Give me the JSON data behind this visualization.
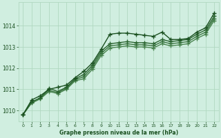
{
  "bg_color": "#d0eee0",
  "grid_color": "#b0d8c0",
  "line_color_dark": "#1a5020",
  "xlabel": "Graphe pression niveau de la mer (hPa)",
  "x_ticks": [
    0,
    1,
    2,
    3,
    4,
    5,
    6,
    7,
    8,
    9,
    10,
    11,
    12,
    13,
    14,
    15,
    16,
    17,
    18,
    19,
    20,
    21,
    22
  ],
  "ylim": [
    1009.5,
    1015.1
  ],
  "xlim": [
    -0.5,
    22.5
  ],
  "yticks": [
    1010,
    1011,
    1012,
    1013,
    1014
  ],
  "series": [
    {
      "x": [
        0,
        1,
        2,
        3,
        4,
        5,
        6,
        7,
        8,
        9,
        10,
        11,
        12,
        13,
        14,
        15,
        16,
        17,
        18,
        19,
        20,
        21,
        22
      ],
      "y": [
        1009.8,
        1010.5,
        1010.7,
        1011.0,
        1011.1,
        1011.2,
        1011.55,
        1011.85,
        1012.25,
        1012.9,
        1013.6,
        1013.65,
        1013.65,
        1013.6,
        1013.55,
        1013.5,
        1013.7,
        1013.35,
        1013.35,
        1013.4,
        1013.7,
        1013.9,
        1014.6
      ],
      "color": "#1a5020",
      "lw": 1.0,
      "marker": "+",
      "ms": 4.0,
      "mew": 1.0,
      "zorder": 5
    },
    {
      "x": [
        0,
        1,
        2,
        3,
        4,
        5,
        6,
        7,
        8,
        9,
        10,
        11,
        12,
        13,
        14,
        15,
        16,
        17,
        18,
        19,
        20,
        21,
        22
      ],
      "y": [
        1009.8,
        1010.4,
        1010.6,
        1011.05,
        1010.9,
        1011.1,
        1011.5,
        1011.7,
        1012.15,
        1012.8,
        1013.15,
        1013.2,
        1013.25,
        1013.2,
        1013.2,
        1013.15,
        1013.35,
        1013.25,
        1013.3,
        1013.35,
        1013.6,
        1013.8,
        1014.45
      ],
      "color": "#2a6530",
      "lw": 1.0,
      "marker": "+",
      "ms": 4.0,
      "mew": 1.0,
      "zorder": 4
    },
    {
      "x": [
        0,
        1,
        2,
        3,
        4,
        5,
        6,
        7,
        8,
        9,
        10,
        11,
        12,
        13,
        14,
        15,
        16,
        17,
        18,
        19,
        20,
        21,
        22
      ],
      "y": [
        1009.8,
        1010.4,
        1010.6,
        1010.95,
        1010.85,
        1011.05,
        1011.45,
        1011.6,
        1012.05,
        1012.7,
        1013.05,
        1013.1,
        1013.15,
        1013.1,
        1013.1,
        1013.05,
        1013.25,
        1013.15,
        1013.2,
        1013.25,
        1013.5,
        1013.7,
        1014.35
      ],
      "color": "#3a7540",
      "lw": 1.0,
      "marker": "+",
      "ms": 4.0,
      "mew": 1.0,
      "zorder": 3
    },
    {
      "x": [
        0,
        1,
        2,
        3,
        4,
        5,
        6,
        7,
        8,
        9,
        10,
        11,
        12,
        13,
        14,
        15,
        16,
        17,
        18,
        19,
        20,
        21,
        22
      ],
      "y": [
        1009.8,
        1010.35,
        1010.55,
        1010.9,
        1010.8,
        1011.0,
        1011.4,
        1011.5,
        1011.95,
        1012.6,
        1012.95,
        1013.0,
        1013.05,
        1013.0,
        1013.0,
        1012.95,
        1013.15,
        1013.05,
        1013.1,
        1013.15,
        1013.4,
        1013.6,
        1014.25
      ],
      "color": "#4a8550",
      "lw": 1.0,
      "marker": "+",
      "ms": 4.0,
      "mew": 1.0,
      "zorder": 2
    }
  ]
}
